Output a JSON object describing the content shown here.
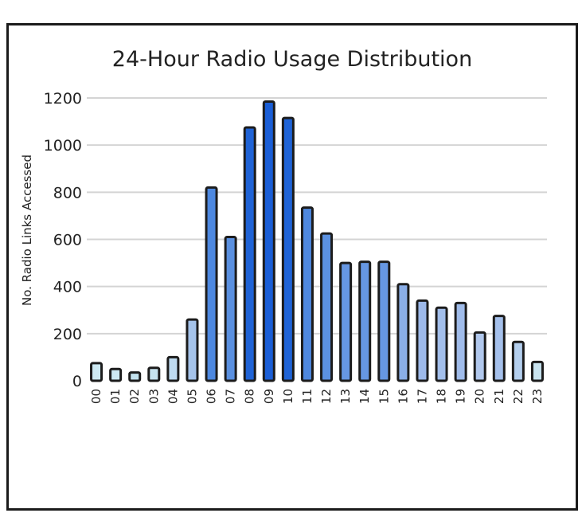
{
  "chart_data": {
    "type": "bar",
    "title": "24-Hour Radio Usage Distribution",
    "xlabel": "",
    "ylabel": "No. Radio Links Accessed",
    "ylim": [
      0,
      1200
    ],
    "yticks": [
      0,
      200,
      400,
      600,
      800,
      1000,
      1200
    ],
    "grid": true,
    "categories": [
      "00",
      "01",
      "02",
      "03",
      "04",
      "05",
      "06",
      "07",
      "08",
      "09",
      "10",
      "11",
      "12",
      "13",
      "14",
      "15",
      "16",
      "17",
      "18",
      "19",
      "20",
      "21",
      "22",
      "23"
    ],
    "values": [
      75,
      50,
      35,
      55,
      100,
      260,
      820,
      610,
      1075,
      1185,
      1115,
      735,
      625,
      500,
      505,
      505,
      410,
      340,
      310,
      330,
      205,
      275,
      165,
      80
    ],
    "colors": [
      "#cde9f3",
      "#cde9f3",
      "#c3e2ee",
      "#c6e3ef",
      "#bedaf0",
      "#a5c3ea",
      "#4d88e0",
      "#5a90e0",
      "#1f63d6",
      "#1a5ed6",
      "#1f63d6",
      "#4f88df",
      "#5b91e1",
      "#6697e3",
      "#6697e3",
      "#6697e3",
      "#8aaee7",
      "#9db9e9",
      "#a3bfeb",
      "#a0bcea",
      "#b1c8ed",
      "#a5c0eb",
      "#b4cfee",
      "#c8e3ef"
    ]
  }
}
